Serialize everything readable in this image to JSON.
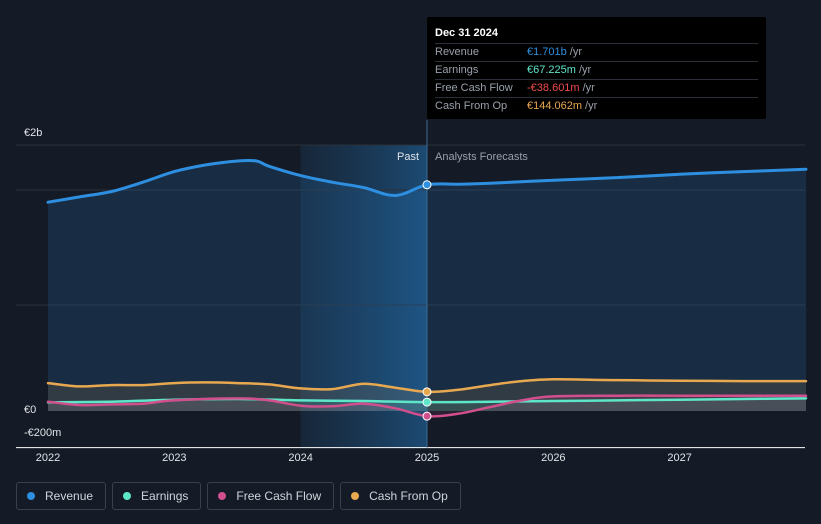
{
  "tooltip": {
    "date": "Dec 31 2024",
    "rows": [
      {
        "label": "Revenue",
        "value": "€1.701b",
        "unit": "/yr",
        "color": "#2e8fe0"
      },
      {
        "label": "Earnings",
        "value": "€67.225m",
        "unit": "/yr",
        "color": "#5ee6c8"
      },
      {
        "label": "Free Cash Flow",
        "value": "-€38.601m",
        "unit": "/yr",
        "color": "#f04a4a"
      },
      {
        "label": "Cash From Op",
        "value": "€144.062m",
        "unit": "/yr",
        "color": "#e8a850"
      }
    ]
  },
  "legend": [
    {
      "label": "Revenue",
      "color": "#2e8fe0"
    },
    {
      "label": "Earnings",
      "color": "#5ee6c8"
    },
    {
      "label": "Free Cash Flow",
      "color": "#d04f8c"
    },
    {
      "label": "Cash From Op",
      "color": "#e8a850"
    }
  ],
  "chart_data": {
    "type": "line",
    "y_tick_labels": [
      "€2b",
      "€0",
      "-€200m"
    ],
    "ylim": [
      -200,
      2000
    ],
    "y_unit": "€m",
    "x_ticks": [
      2022,
      2023,
      2024,
      2025,
      2026,
      2027
    ],
    "xlim": [
      2022,
      2028
    ],
    "past_label": "Past",
    "forecast_label": "Analysts Forecasts",
    "divider_x": 2025.0,
    "highlight_range": [
      2024.0,
      2025.0
    ],
    "series": [
      {
        "name": "Revenue",
        "color": "#2e8fe0",
        "fill": true,
        "points": [
          [
            2022.0,
            1570
          ],
          [
            2022.25,
            1610
          ],
          [
            2022.5,
            1650
          ],
          [
            2022.75,
            1720
          ],
          [
            2023.0,
            1800
          ],
          [
            2023.25,
            1850
          ],
          [
            2023.5,
            1880
          ],
          [
            2023.65,
            1880
          ],
          [
            2023.75,
            1840
          ],
          [
            2024.0,
            1770
          ],
          [
            2024.25,
            1720
          ],
          [
            2024.5,
            1680
          ],
          [
            2024.75,
            1620
          ],
          [
            2025.0,
            1701
          ],
          [
            2025.25,
            1705
          ],
          [
            2025.5,
            1712
          ],
          [
            2026.0,
            1735
          ],
          [
            2026.5,
            1755
          ],
          [
            2027.0,
            1780
          ],
          [
            2027.5,
            1800
          ],
          [
            2028.0,
            1818
          ]
        ]
      },
      {
        "name": "Earnings",
        "color": "#5ee6c8",
        "fill": true,
        "points": [
          [
            2022.0,
            65
          ],
          [
            2022.5,
            70
          ],
          [
            2023.0,
            85
          ],
          [
            2023.5,
            90
          ],
          [
            2024.0,
            80
          ],
          [
            2024.5,
            75
          ],
          [
            2025.0,
            67
          ],
          [
            2025.5,
            70
          ],
          [
            2026.0,
            75
          ],
          [
            2026.5,
            80
          ],
          [
            2027.0,
            85
          ],
          [
            2027.5,
            90
          ],
          [
            2028.0,
            95
          ]
        ]
      },
      {
        "name": "Free Cash Flow",
        "color": "#d04f8c",
        "fill": true,
        "points": [
          [
            2022.0,
            70
          ],
          [
            2022.25,
            45
          ],
          [
            2022.5,
            50
          ],
          [
            2022.75,
            55
          ],
          [
            2023.0,
            80
          ],
          [
            2023.5,
            95
          ],
          [
            2023.75,
            80
          ],
          [
            2024.0,
            40
          ],
          [
            2024.25,
            35
          ],
          [
            2024.5,
            55
          ],
          [
            2024.75,
            20
          ],
          [
            2025.0,
            -39
          ],
          [
            2025.25,
            -20
          ],
          [
            2025.5,
            30
          ],
          [
            2025.75,
            80
          ],
          [
            2026.0,
            110
          ],
          [
            2026.5,
            115
          ],
          [
            2027.0,
            115
          ],
          [
            2027.5,
            115
          ],
          [
            2028.0,
            115
          ]
        ]
      },
      {
        "name": "Cash From Op",
        "color": "#e8a850",
        "fill": true,
        "points": [
          [
            2022.0,
            210
          ],
          [
            2022.25,
            185
          ],
          [
            2022.5,
            195
          ],
          [
            2022.75,
            195
          ],
          [
            2023.0,
            210
          ],
          [
            2023.25,
            215
          ],
          [
            2023.5,
            210
          ],
          [
            2023.75,
            200
          ],
          [
            2024.0,
            170
          ],
          [
            2024.25,
            165
          ],
          [
            2024.5,
            205
          ],
          [
            2024.75,
            175
          ],
          [
            2025.0,
            144
          ],
          [
            2025.25,
            160
          ],
          [
            2025.5,
            195
          ],
          [
            2025.75,
            225
          ],
          [
            2026.0,
            238
          ],
          [
            2026.5,
            232
          ],
          [
            2027.0,
            228
          ],
          [
            2027.5,
            225
          ],
          [
            2028.0,
            225
          ]
        ]
      }
    ]
  }
}
